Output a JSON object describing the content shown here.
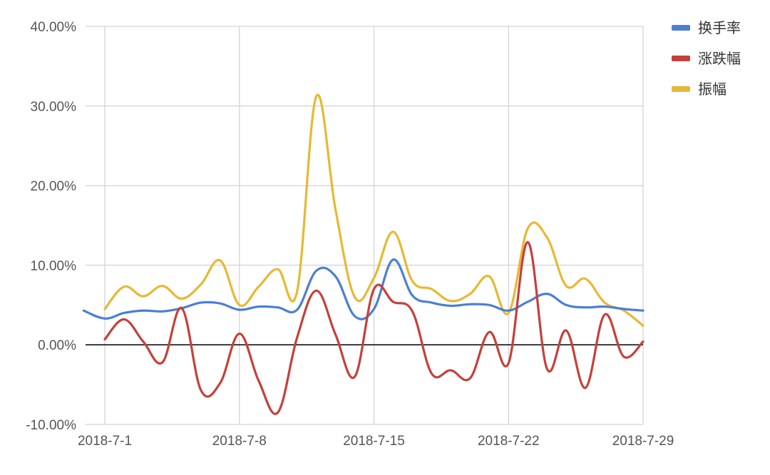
{
  "chart_data": {
    "type": "line",
    "title": "",
    "xlabel": "",
    "ylabel": "",
    "x_start_day": 0,
    "x_end_day": 28,
    "x_ticks": [
      {
        "day": 0,
        "label": "2018-7-1"
      },
      {
        "day": 7,
        "label": "2018-7-8"
      },
      {
        "day": 14,
        "label": "2018-7-15"
      },
      {
        "day": 21,
        "label": "2018-7-22"
      },
      {
        "day": 28,
        "label": "2018-7-29"
      }
    ],
    "ylim": [
      -10,
      40
    ],
    "y_ticks": [
      {
        "value": 40,
        "label": "40.00%"
      },
      {
        "value": 30,
        "label": "30.00%"
      },
      {
        "value": 20,
        "label": "20.00%"
      },
      {
        "value": 10,
        "label": "10.00%"
      },
      {
        "value": 0,
        "label": "0.00%"
      },
      {
        "value": -10,
        "label": "-10.00%"
      }
    ],
    "legend_position": "top-right",
    "series": [
      {
        "name": "换手率",
        "color": "#4a7fd4",
        "points": [
          [
            -1.1,
            4.3
          ],
          [
            0,
            3.3
          ],
          [
            1,
            4.0
          ],
          [
            2,
            4.3
          ],
          [
            3,
            4.2
          ],
          [
            4,
            4.6
          ],
          [
            5,
            5.3
          ],
          [
            6,
            5.2
          ],
          [
            7,
            4.4
          ],
          [
            8,
            4.8
          ],
          [
            9,
            4.7
          ],
          [
            10,
            4.4
          ],
          [
            11,
            9.3
          ],
          [
            12,
            8.6
          ],
          [
            13,
            3.6
          ],
          [
            14,
            4.5
          ],
          [
            15,
            10.7
          ],
          [
            16,
            6.2
          ],
          [
            17,
            5.3
          ],
          [
            18,
            4.9
          ],
          [
            19,
            5.1
          ],
          [
            20,
            5.0
          ],
          [
            21,
            4.3
          ],
          [
            22,
            5.4
          ],
          [
            23,
            6.4
          ],
          [
            24,
            5.0
          ],
          [
            25,
            4.7
          ],
          [
            26,
            4.8
          ],
          [
            27,
            4.5
          ],
          [
            28,
            4.3
          ]
        ]
      },
      {
        "name": "涨跌幅",
        "color": "#c5403b",
        "points": [
          [
            0,
            0.7
          ],
          [
            1,
            3.2
          ],
          [
            2,
            0.4
          ],
          [
            3,
            -2.2
          ],
          [
            4,
            4.6
          ],
          [
            5,
            -5.7
          ],
          [
            6,
            -4.8
          ],
          [
            7,
            1.4
          ],
          [
            8,
            -4.5
          ],
          [
            9,
            -8.5
          ],
          [
            10,
            0.9
          ],
          [
            11,
            6.8
          ],
          [
            12,
            1.3
          ],
          [
            13,
            -4.0
          ],
          [
            14,
            7.0
          ],
          [
            15,
            5.4
          ],
          [
            16,
            4.2
          ],
          [
            17,
            -3.6
          ],
          [
            18,
            -3.2
          ],
          [
            19,
            -4.2
          ],
          [
            20,
            1.6
          ],
          [
            21,
            -2.3
          ],
          [
            22,
            12.9
          ],
          [
            23,
            -3.0
          ],
          [
            24,
            1.8
          ],
          [
            25,
            -5.4
          ],
          [
            26,
            3.8
          ],
          [
            27,
            -1.5
          ],
          [
            28,
            0.4
          ]
        ]
      },
      {
        "name": "振幅",
        "color": "#e8b834",
        "points": [
          [
            0,
            4.5
          ],
          [
            1,
            7.3
          ],
          [
            2,
            6.1
          ],
          [
            3,
            7.4
          ],
          [
            4,
            5.8
          ],
          [
            5,
            7.6
          ],
          [
            6,
            10.6
          ],
          [
            7,
            5.0
          ],
          [
            8,
            7.3
          ],
          [
            9,
            9.5
          ],
          [
            10,
            6.7
          ],
          [
            11,
            31.2
          ],
          [
            12,
            17.0
          ],
          [
            13,
            6.0
          ],
          [
            14,
            8.4
          ],
          [
            15,
            14.2
          ],
          [
            16,
            8.0
          ],
          [
            17,
            7.0
          ],
          [
            18,
            5.5
          ],
          [
            19,
            6.4
          ],
          [
            20,
            8.6
          ],
          [
            21,
            4.0
          ],
          [
            22,
            14.6
          ],
          [
            23,
            13.5
          ],
          [
            24,
            7.4
          ],
          [
            25,
            8.3
          ],
          [
            26,
            5.3
          ],
          [
            27,
            4.3
          ],
          [
            28,
            2.4
          ]
        ]
      }
    ]
  }
}
